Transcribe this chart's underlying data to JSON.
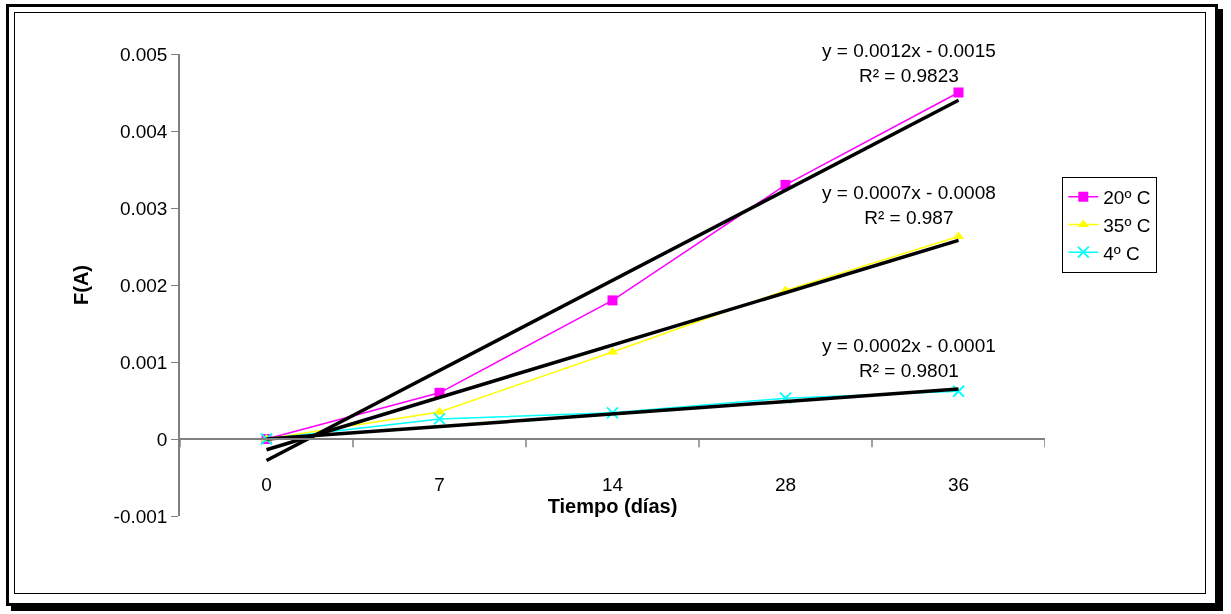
{
  "chart_data": {
    "type": "line",
    "xlabel": "Tiempo (días)",
    "ylabel": "F(A)",
    "categories": [
      "0",
      "7",
      "14",
      "28",
      "36"
    ],
    "series": [
      {
        "name": "20º C",
        "color": "#ff00ff",
        "marker": "square",
        "values": [
          0,
          0.0006,
          0.0018,
          0.0033,
          0.0045
        ]
      },
      {
        "name": "35º C",
        "color": "#ffff00",
        "marker": "triangle",
        "values": [
          0,
          0.00035,
          0.00113,
          0.00193,
          0.00263
        ]
      },
      {
        "name": "4º C",
        "color": "#00ffff",
        "marker": "cross",
        "values": [
          0,
          0.00026,
          0.00034,
          0.00053,
          0.00062
        ]
      },
      {
        "type": "line",
        "color": "#000000",
        "marker": "none",
        "x": [
          "0",
          "36"
        ],
        "values": [
          -0.00028,
          0.0044
        ]
      },
      {
        "type": "line",
        "color": "#000000",
        "marker": "none",
        "x": [
          "0",
          "36"
        ],
        "values": [
          -0.00014,
          0.00258
        ]
      },
      {
        "type": "line",
        "color": "#000000",
        "marker": "none",
        "x": [
          "0",
          "36"
        ],
        "values": [
          0,
          0.00065
        ]
      }
    ],
    "annotations": [
      "y = 0.0012x - 0.0015\nR² = 0.9823",
      "y = 0.0007x - 0.0008\nR² = 0.987",
      "y = 0.0002x - 0.0001\nR² = 0.9801"
    ],
    "ylim": [
      -0.001,
      0.005
    ],
    "yticks": [
      -0.001,
      0,
      0.001,
      0.002,
      0.003,
      0.004,
      0.005
    ],
    "grid": false,
    "legend": "right",
    "line_style": "solid"
  }
}
